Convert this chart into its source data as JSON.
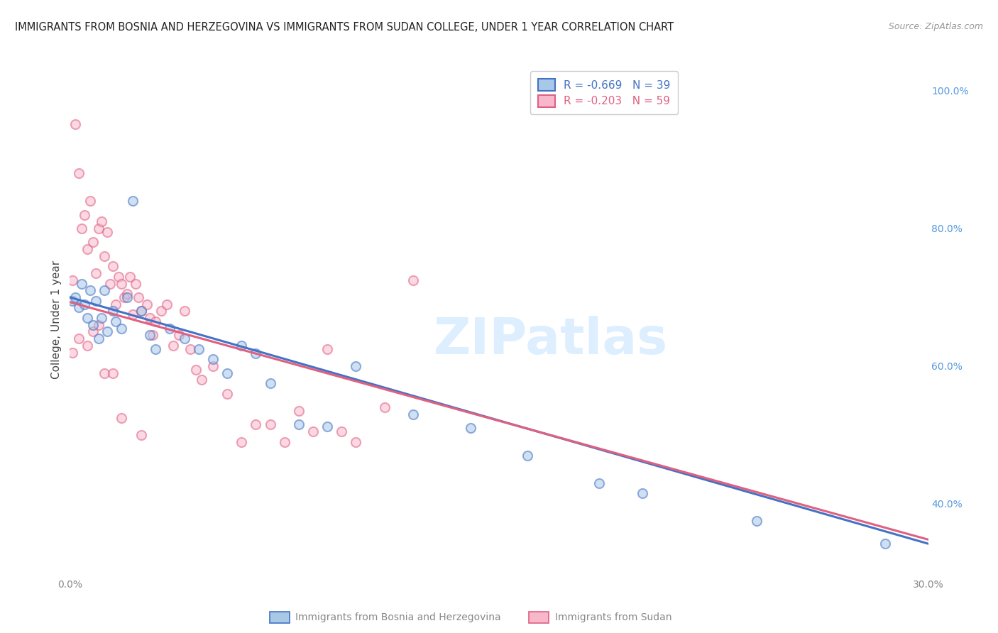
{
  "title": "IMMIGRANTS FROM BOSNIA AND HERZEGOVINA VS IMMIGRANTS FROM SUDAN COLLEGE, UNDER 1 YEAR CORRELATION CHART",
  "source": "Source: ZipAtlas.com",
  "ylabel": "College, Under 1 year",
  "xmin": 0.0,
  "xmax": 0.3,
  "ymin": 0.295,
  "ymax": 1.04,
  "right_yticks": [
    0.4,
    0.6,
    0.8,
    1.0
  ],
  "right_yticklabels": [
    "40.0%",
    "60.0%",
    "80.0%",
    "100.0%"
  ],
  "xtick_positions": [
    0.0,
    0.05,
    0.1,
    0.15,
    0.2,
    0.25,
    0.3
  ],
  "xtick_labels": [
    "0.0%",
    "",
    "",
    "",
    "",
    "",
    "30.0%"
  ],
  "legend_blue_label": "R = -0.669   N = 39",
  "legend_pink_label": "R = -0.203   N = 59",
  "blue_color": "#a8c8e8",
  "blue_edge": "#4472c4",
  "pink_color": "#f8b8cc",
  "pink_edge": "#e06080",
  "watermark": "ZIPatlas",
  "watermark_color": "#ddeeff",
  "bottom_label_bosnia": "Immigrants from Bosnia and Herzegovina",
  "bottom_label_sudan": "Immigrants from Sudan",
  "background": "#ffffff",
  "grid_color": "#e0e0e0",
  "blue_line_y0": 0.7,
  "blue_line_y1": 0.342,
  "pink_line_y0": 0.693,
  "pink_line_y1": 0.348,
  "bosnia_x": [
    0.001,
    0.002,
    0.003,
    0.004,
    0.005,
    0.006,
    0.007,
    0.008,
    0.009,
    0.01,
    0.011,
    0.012,
    0.013,
    0.015,
    0.016,
    0.018,
    0.02,
    0.022,
    0.025,
    0.028,
    0.03,
    0.035,
    0.04,
    0.045,
    0.05,
    0.055,
    0.06,
    0.065,
    0.07,
    0.08,
    0.09,
    0.1,
    0.12,
    0.14,
    0.16,
    0.185,
    0.2,
    0.24,
    0.285
  ],
  "bosnia_y": [
    0.695,
    0.7,
    0.685,
    0.72,
    0.69,
    0.67,
    0.71,
    0.66,
    0.695,
    0.64,
    0.67,
    0.71,
    0.65,
    0.68,
    0.665,
    0.655,
    0.7,
    0.84,
    0.68,
    0.645,
    0.625,
    0.655,
    0.64,
    0.625,
    0.61,
    0.59,
    0.63,
    0.618,
    0.575,
    0.515,
    0.512,
    0.6,
    0.53,
    0.51,
    0.47,
    0.43,
    0.415,
    0.375,
    0.342
  ],
  "sudan_x": [
    0.001,
    0.002,
    0.003,
    0.004,
    0.005,
    0.006,
    0.007,
    0.008,
    0.009,
    0.01,
    0.011,
    0.012,
    0.013,
    0.014,
    0.015,
    0.016,
    0.017,
    0.018,
    0.019,
    0.02,
    0.021,
    0.022,
    0.023,
    0.024,
    0.025,
    0.027,
    0.028,
    0.029,
    0.03,
    0.032,
    0.034,
    0.036,
    0.038,
    0.04,
    0.042,
    0.044,
    0.046,
    0.05,
    0.055,
    0.06,
    0.065,
    0.07,
    0.075,
    0.08,
    0.085,
    0.09,
    0.095,
    0.1,
    0.11,
    0.12,
    0.001,
    0.003,
    0.006,
    0.008,
    0.01,
    0.012,
    0.015,
    0.018,
    0.025
  ],
  "sudan_y": [
    0.725,
    0.952,
    0.88,
    0.8,
    0.82,
    0.77,
    0.84,
    0.78,
    0.735,
    0.8,
    0.81,
    0.76,
    0.795,
    0.72,
    0.745,
    0.69,
    0.73,
    0.72,
    0.7,
    0.705,
    0.73,
    0.675,
    0.72,
    0.7,
    0.68,
    0.69,
    0.67,
    0.645,
    0.665,
    0.68,
    0.69,
    0.63,
    0.645,
    0.68,
    0.625,
    0.595,
    0.58,
    0.6,
    0.56,
    0.49,
    0.515,
    0.515,
    0.49,
    0.535,
    0.505,
    0.625,
    0.505,
    0.49,
    0.54,
    0.725,
    0.62,
    0.64,
    0.63,
    0.65,
    0.66,
    0.59,
    0.59,
    0.525,
    0.5
  ]
}
